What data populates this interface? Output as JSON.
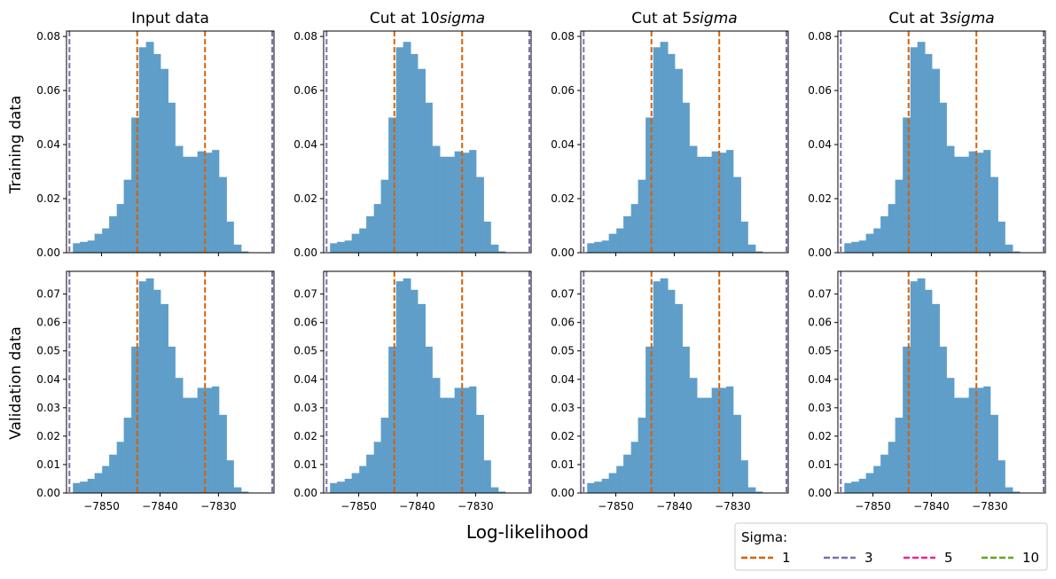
{
  "figure": {
    "xlabel": "Log-likelihood",
    "row_labels": [
      "Training data",
      "Validation data"
    ],
    "column_titles": [
      {
        "text": "Input data",
        "suffix": ""
      },
      {
        "text": "Cut at 10",
        "suffix": "sigma"
      },
      {
        "text": "Cut at 5",
        "suffix": "sigma"
      },
      {
        "text": "Cut at 3",
        "suffix": "sigma"
      }
    ],
    "legend": {
      "title": "Sigma:",
      "entries": [
        {
          "label": "1",
          "color": "#d95f02"
        },
        {
          "label": "3",
          "color": "#7570b3"
        },
        {
          "label": "5",
          "color": "#e7298a"
        },
        {
          "label": "10",
          "color": "#66a61e"
        }
      ],
      "placement": "lower-right"
    }
  },
  "chart_data": {
    "type": "bar",
    "grid": false,
    "bar_color": "#5f9ec9",
    "xlim": [
      -7856,
      -7820.5
    ],
    "xticks": [
      -7850,
      -7840,
      -7830
    ],
    "xtick_labels": [
      "−7850",
      "−7840",
      "−7830"
    ],
    "bin_edges": [
      -7854.9,
      -7853.7,
      -7852.4,
      -7851.2,
      -7849.9,
      -7848.7,
      -7847.4,
      -7846.2,
      -7844.9,
      -7843.6,
      -7842.4,
      -7841.1,
      -7839.9,
      -7838.6,
      -7837.4,
      -7836.1,
      -7834.9,
      -7833.6,
      -7832.4,
      -7831.1,
      -7829.9,
      -7828.6,
      -7827.4,
      -7826.1,
      -7824.9,
      -7823.6,
      -7822.4
    ],
    "vlines": {
      "sigma_1": {
        "color": "#d95f02",
        "x": [
          -7843.9,
          -7832.3
        ]
      },
      "sigma_3": {
        "color": "#7570b3",
        "x": [
          -7855.5,
          -7820.8
        ]
      }
    },
    "panels": [
      {
        "row": "Training data",
        "column": "Input data",
        "ylim": [
          0,
          0.082
        ],
        "yticks": [
          0,
          0.02,
          0.04,
          0.06,
          0.08
        ],
        "ytick_labels": [
          "0.00",
          "0.02",
          "0.04",
          "0.06",
          "0.08"
        ],
        "values": [
          0.0035,
          0.004,
          0.0045,
          0.007,
          0.009,
          0.0135,
          0.018,
          0.027,
          0.05,
          0.076,
          0.078,
          0.0735,
          0.068,
          0.0555,
          0.0395,
          0.0355,
          0.0355,
          0.0375,
          0.037,
          0.038,
          0.028,
          0.0115,
          0.003,
          0.0005,
          0,
          0
        ]
      },
      {
        "row": "Training data",
        "column": "Cut at 10sigma",
        "ylim": [
          0,
          0.082
        ],
        "yticks": [
          0,
          0.02,
          0.04,
          0.06,
          0.08
        ],
        "ytick_labels": [
          "0.00",
          "0.02",
          "0.04",
          "0.06",
          "0.08"
        ],
        "values": [
          0.0035,
          0.004,
          0.0045,
          0.007,
          0.009,
          0.0135,
          0.018,
          0.027,
          0.05,
          0.076,
          0.078,
          0.0735,
          0.068,
          0.0555,
          0.0395,
          0.0355,
          0.0355,
          0.0375,
          0.037,
          0.038,
          0.028,
          0.0115,
          0.003,
          0.0005,
          0,
          0
        ]
      },
      {
        "row": "Training data",
        "column": "Cut at 5sigma",
        "ylim": [
          0,
          0.082
        ],
        "yticks": [
          0,
          0.02,
          0.04,
          0.06,
          0.08
        ],
        "ytick_labels": [
          "0.00",
          "0.02",
          "0.04",
          "0.06",
          "0.08"
        ],
        "values": [
          0.0035,
          0.004,
          0.0045,
          0.007,
          0.009,
          0.0135,
          0.018,
          0.027,
          0.05,
          0.076,
          0.078,
          0.0735,
          0.068,
          0.0555,
          0.0395,
          0.0355,
          0.0355,
          0.0375,
          0.037,
          0.038,
          0.028,
          0.0115,
          0.003,
          0.0005,
          0,
          0
        ]
      },
      {
        "row": "Training data",
        "column": "Cut at 3sigma",
        "ylim": [
          0,
          0.082
        ],
        "yticks": [
          0,
          0.02,
          0.04,
          0.06,
          0.08
        ],
        "ytick_labels": [
          "0.00",
          "0.02",
          "0.04",
          "0.06",
          "0.08"
        ],
        "values": [
          0.0035,
          0.004,
          0.0045,
          0.007,
          0.009,
          0.0135,
          0.018,
          0.027,
          0.05,
          0.076,
          0.078,
          0.0735,
          0.068,
          0.0555,
          0.0395,
          0.0355,
          0.0355,
          0.0375,
          0.037,
          0.038,
          0.028,
          0.0115,
          0.003,
          0.0005,
          0,
          0
        ]
      },
      {
        "row": "Validation data",
        "column": "Input data",
        "ylim": [
          0,
          0.078
        ],
        "yticks": [
          0,
          0.01,
          0.02,
          0.03,
          0.04,
          0.05,
          0.06,
          0.07
        ],
        "ytick_labels": [
          "0.00",
          "0.01",
          "0.02",
          "0.03",
          "0.04",
          "0.05",
          "0.06",
          "0.07"
        ],
        "values": [
          0.0035,
          0.004,
          0.005,
          0.007,
          0.0095,
          0.0135,
          0.018,
          0.0265,
          0.0515,
          0.0745,
          0.0755,
          0.0715,
          0.0665,
          0.0515,
          0.0405,
          0.0335,
          0.0335,
          0.037,
          0.037,
          0.0375,
          0.0275,
          0.0115,
          0.002,
          0.0005,
          0,
          0
        ]
      },
      {
        "row": "Validation data",
        "column": "Cut at 10sigma",
        "ylim": [
          0,
          0.078
        ],
        "yticks": [
          0,
          0.01,
          0.02,
          0.03,
          0.04,
          0.05,
          0.06,
          0.07
        ],
        "ytick_labels": [
          "0.00",
          "0.01",
          "0.02",
          "0.03",
          "0.04",
          "0.05",
          "0.06",
          "0.07"
        ],
        "values": [
          0.0035,
          0.004,
          0.005,
          0.007,
          0.0095,
          0.0135,
          0.018,
          0.0265,
          0.0515,
          0.0745,
          0.0755,
          0.0715,
          0.0665,
          0.0515,
          0.0405,
          0.0335,
          0.0335,
          0.037,
          0.037,
          0.0375,
          0.0275,
          0.0115,
          0.002,
          0.0005,
          0,
          0
        ]
      },
      {
        "row": "Validation data",
        "column": "Cut at 5sigma",
        "ylim": [
          0,
          0.078
        ],
        "yticks": [
          0,
          0.01,
          0.02,
          0.03,
          0.04,
          0.05,
          0.06,
          0.07
        ],
        "ytick_labels": [
          "0.00",
          "0.01",
          "0.02",
          "0.03",
          "0.04",
          "0.05",
          "0.06",
          "0.07"
        ],
        "values": [
          0.0035,
          0.004,
          0.005,
          0.007,
          0.0095,
          0.0135,
          0.018,
          0.0265,
          0.0515,
          0.0745,
          0.0755,
          0.0715,
          0.0665,
          0.0515,
          0.0405,
          0.0335,
          0.0335,
          0.037,
          0.037,
          0.0375,
          0.0275,
          0.0115,
          0.002,
          0.0005,
          0,
          0
        ]
      },
      {
        "row": "Validation data",
        "column": "Cut at 3sigma",
        "ylim": [
          0,
          0.078
        ],
        "yticks": [
          0,
          0.01,
          0.02,
          0.03,
          0.04,
          0.05,
          0.06,
          0.07
        ],
        "ytick_labels": [
          "0.00",
          "0.01",
          "0.02",
          "0.03",
          "0.04",
          "0.05",
          "0.06",
          "0.07"
        ],
        "values": [
          0.0035,
          0.004,
          0.005,
          0.007,
          0.0095,
          0.0135,
          0.018,
          0.0265,
          0.0515,
          0.0745,
          0.0755,
          0.0715,
          0.0665,
          0.0515,
          0.0405,
          0.0335,
          0.0335,
          0.037,
          0.037,
          0.0375,
          0.0275,
          0.0115,
          0.002,
          0.0005,
          0,
          0
        ]
      }
    ]
  }
}
